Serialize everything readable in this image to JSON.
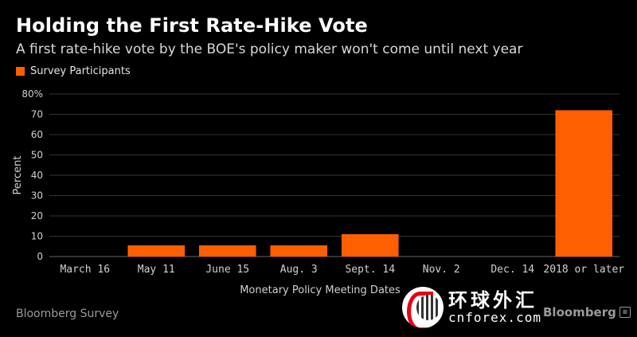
{
  "header": {
    "title": "Holding the First Rate-Hike Vote",
    "subtitle": "A first rate-hike vote by the BOE's policy maker won't come until next year"
  },
  "legend": {
    "label": "Survey Participants",
    "color": "#ff5f00"
  },
  "source": "Bloomberg Survey",
  "brand": "Bloomberg",
  "watermark": {
    "chinese": "环球外汇",
    "site": "cnforex.com"
  },
  "chart_data": {
    "type": "bar",
    "categories": [
      "March 16",
      "May 11",
      "June 15",
      "Aug. 3",
      "Sept. 14",
      "Nov. 2",
      "Dec. 14",
      "2018 or later"
    ],
    "series": [
      {
        "name": "Survey Participants",
        "values": [
          0,
          5.5,
          5.5,
          5.5,
          11,
          0,
          0,
          72
        ]
      }
    ],
    "xlabel": "Monetary Policy Meeting Dates",
    "ylabel": "Percent",
    "ylim": [
      0,
      80
    ],
    "yticks": [
      "0",
      "10",
      "20",
      "30",
      "40",
      "50",
      "60",
      "70",
      "80%"
    ],
    "grid": true,
    "legend_position": "top-left",
    "bar_color": "#ff5f00",
    "grid_color": "#333333",
    "axis_text_color": "#d0d0d0"
  }
}
